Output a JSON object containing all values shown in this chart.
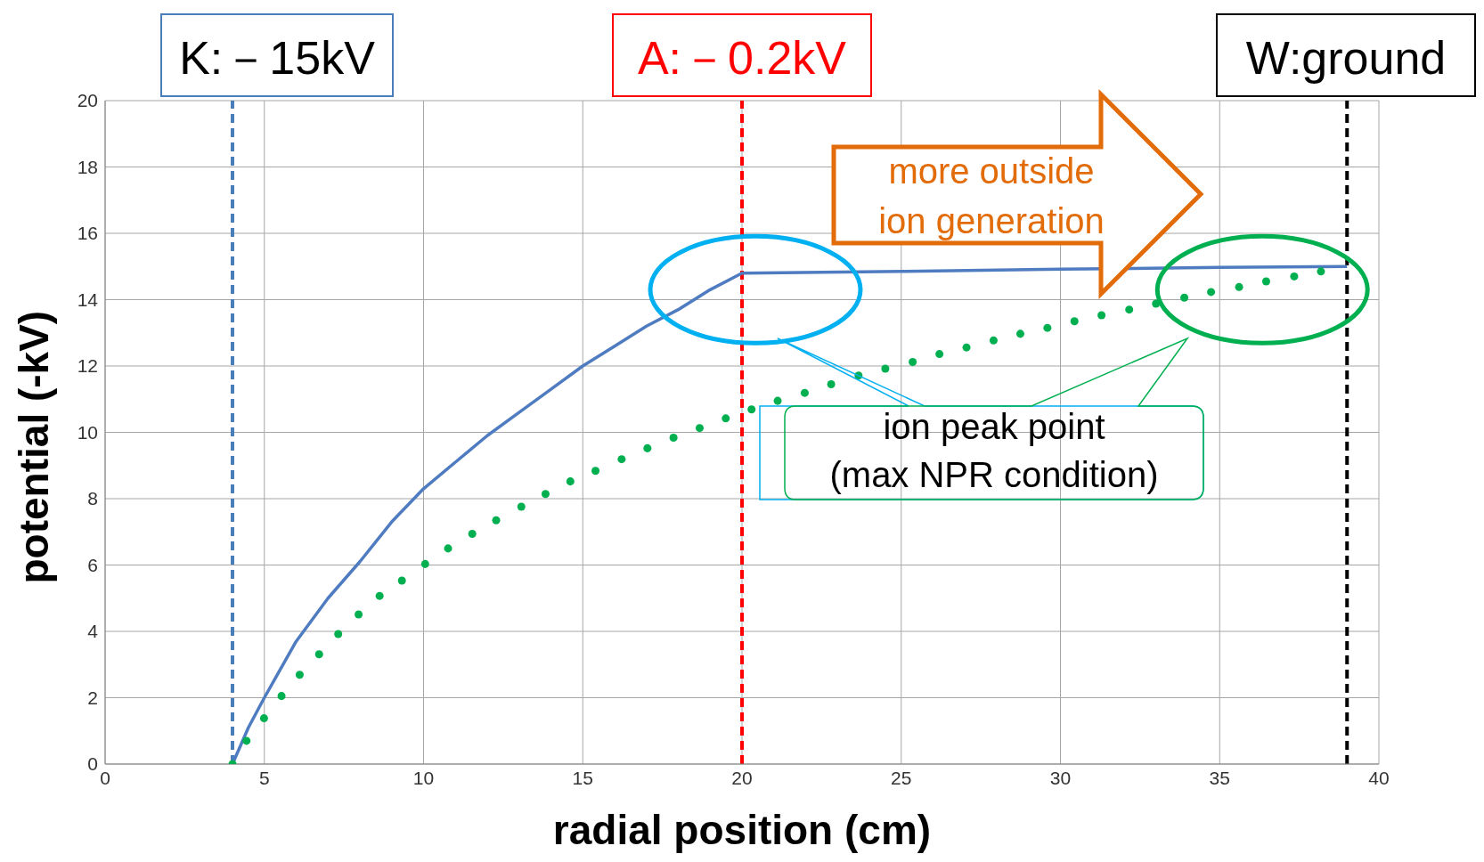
{
  "chart_data": {
    "type": "line",
    "xlabel": "radial position (cm)",
    "ylabel": "potential (-kV)",
    "xlim": [
      0,
      40
    ],
    "xticks": [
      0,
      5,
      10,
      15,
      20,
      25,
      30,
      35,
      40
    ],
    "ylim": [
      0,
      20
    ],
    "yticks": [
      0,
      2,
      4,
      6,
      8,
      10,
      12,
      14,
      16,
      18,
      20
    ],
    "grid": true,
    "series": [
      {
        "color": "#4f7cc0",
        "marker": "none",
        "x": [
          4,
          4.5,
          5,
          6,
          7,
          8,
          9,
          10,
          11,
          12,
          13,
          14,
          15,
          16,
          17,
          18,
          19,
          20,
          20.05,
          25,
          30,
          35,
          39
        ],
        "values": [
          0,
          1.1,
          2,
          3.7,
          5,
          6.1,
          7.3,
          8.3,
          9.1,
          9.9,
          10.6,
          11.3,
          12.0,
          12.6,
          13.2,
          13.7,
          14.3,
          14.8,
          14.8,
          14.85,
          14.92,
          14.97,
          15
        ]
      },
      {
        "type": "scatter",
        "color": "#00b050",
        "marker": "circle",
        "x": [
          4,
          4.44,
          4.99,
          5.54,
          6.11,
          6.72,
          7.32,
          7.96,
          8.62,
          9.32,
          10.05,
          10.77,
          11.53,
          12.28,
          13.07,
          13.83,
          14.61,
          15.4,
          16.22,
          17.03,
          17.85,
          18.67,
          19.49,
          20.3,
          21.12,
          21.97,
          22.8,
          23.66,
          24.5,
          25.36,
          26.2,
          27.05,
          27.9,
          28.74,
          29.59,
          30.44,
          31.29,
          32.16,
          33.0,
          33.89,
          34.73,
          35.61,
          36.46,
          37.34,
          38.18
        ],
        "values": [
          0,
          0.7,
          1.38,
          2.05,
          2.69,
          3.31,
          3.92,
          4.51,
          5.07,
          5.53,
          6.03,
          6.5,
          6.94,
          7.35,
          7.76,
          8.14,
          8.52,
          8.84,
          9.19,
          9.52,
          9.84,
          10.13,
          10.42,
          10.69,
          10.95,
          11.19,
          11.45,
          11.71,
          11.92,
          12.12,
          12.36,
          12.56,
          12.77,
          12.97,
          13.15,
          13.35,
          13.53,
          13.7,
          13.88,
          14.06,
          14.23,
          14.38,
          14.55,
          14.7,
          14.85
        ]
      }
    ],
    "ref_lines": [
      {
        "axis": "x",
        "value": 4,
        "label": "K:－15kV",
        "color": "#4a7ebb",
        "line_style": "dashed"
      },
      {
        "axis": "x",
        "value": 20,
        "label": "A:－0.2kV",
        "color": "#ff0000",
        "line_style": "dashed"
      },
      {
        "axis": "x",
        "value": 39,
        "label": "W:ground",
        "color": "#000000",
        "line_style": "dashed"
      }
    ],
    "annotations": [
      "more outside\nion generation",
      "ion peak point\n(max NPR condition)"
    ]
  }
}
